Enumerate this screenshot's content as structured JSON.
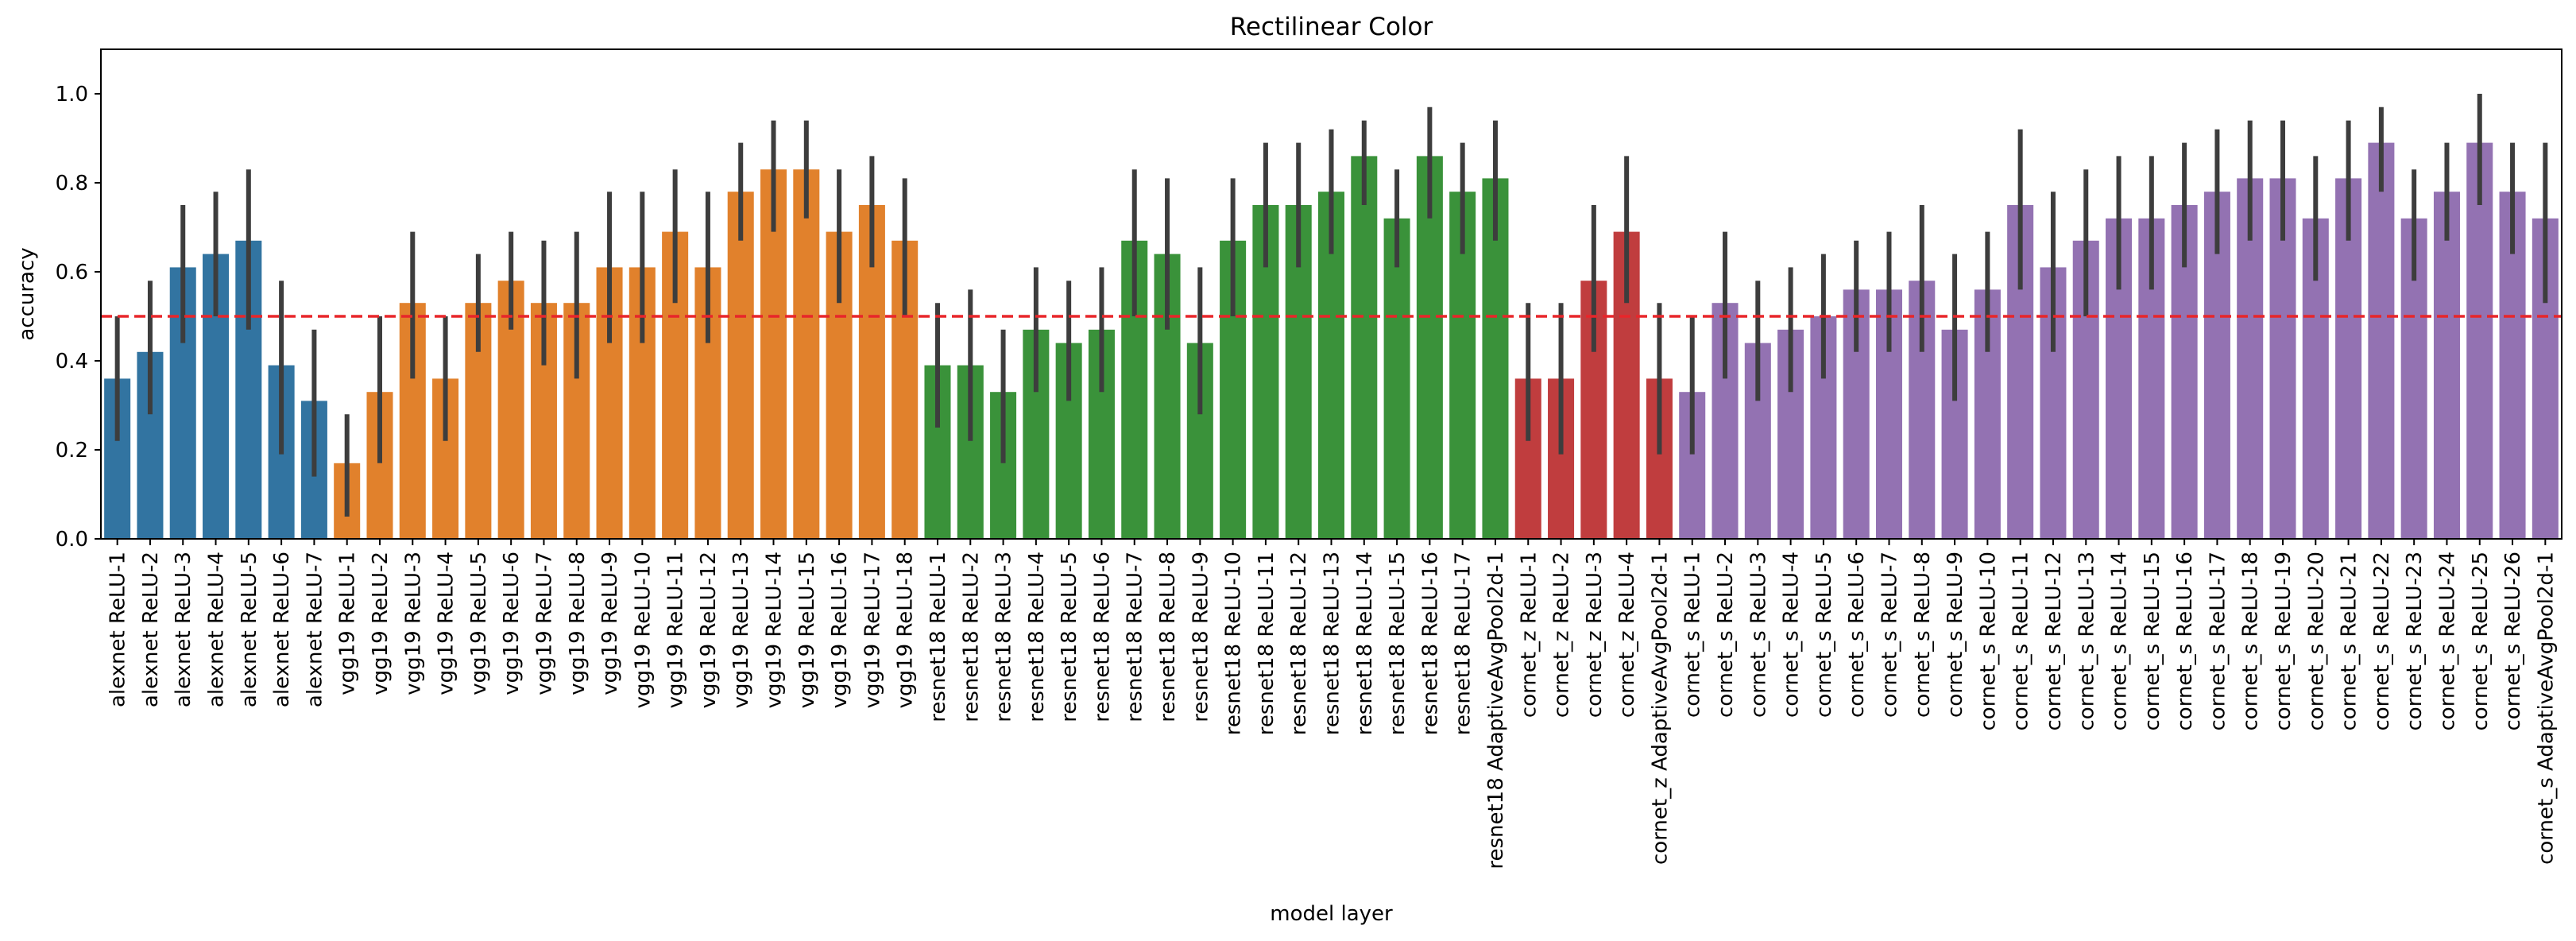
{
  "chart_data": {
    "type": "bar",
    "title": "Rectilinear Color",
    "xlabel": "model layer",
    "ylabel": "accuracy",
    "ylim": [
      0,
      1.1
    ],
    "yticks": [
      0.0,
      0.2,
      0.4,
      0.6,
      0.8,
      1.0
    ],
    "ytick_labels": [
      "0.0",
      "0.2",
      "0.4",
      "0.6",
      "0.8",
      "1.0"
    ],
    "reference_line": {
      "y": 0.5,
      "color": "#e8262a",
      "style": "dashed"
    },
    "error_bar_color": "#3d3d3d",
    "groups": [
      {
        "model": "alexnet",
        "color": "#3274a1"
      },
      {
        "model": "vgg19",
        "color": "#e1812c"
      },
      {
        "model": "resnet18",
        "color": "#3a923a"
      },
      {
        "model": "cornet_z",
        "color": "#c03d3e"
      },
      {
        "model": "cornet_s",
        "color": "#9372b2"
      }
    ],
    "categories": [
      "alexnet ReLU-1",
      "alexnet ReLU-2",
      "alexnet ReLU-3",
      "alexnet ReLU-4",
      "alexnet ReLU-5",
      "alexnet ReLU-6",
      "alexnet ReLU-7",
      "vgg19 ReLU-1",
      "vgg19 ReLU-2",
      "vgg19 ReLU-3",
      "vgg19 ReLU-4",
      "vgg19 ReLU-5",
      "vgg19 ReLU-6",
      "vgg19 ReLU-7",
      "vgg19 ReLU-8",
      "vgg19 ReLU-9",
      "vgg19 ReLU-10",
      "vgg19 ReLU-11",
      "vgg19 ReLU-12",
      "vgg19 ReLU-13",
      "vgg19 ReLU-14",
      "vgg19 ReLU-15",
      "vgg19 ReLU-16",
      "vgg19 ReLU-17",
      "vgg19 ReLU-18",
      "resnet18 ReLU-1",
      "resnet18 ReLU-2",
      "resnet18 ReLU-3",
      "resnet18 ReLU-4",
      "resnet18 ReLU-5",
      "resnet18 ReLU-6",
      "resnet18 ReLU-7",
      "resnet18 ReLU-8",
      "resnet18 ReLU-9",
      "resnet18 ReLU-10",
      "resnet18 ReLU-11",
      "resnet18 ReLU-12",
      "resnet18 ReLU-13",
      "resnet18 ReLU-14",
      "resnet18 ReLU-15",
      "resnet18 ReLU-16",
      "resnet18 ReLU-17",
      "resnet18 AdaptiveAvgPool2d-1",
      "cornet_z ReLU-1",
      "cornet_z ReLU-2",
      "cornet_z ReLU-3",
      "cornet_z ReLU-4",
      "cornet_z AdaptiveAvgPool2d-1",
      "cornet_s ReLU-1",
      "cornet_s ReLU-2",
      "cornet_s ReLU-3",
      "cornet_s ReLU-4",
      "cornet_s ReLU-5",
      "cornet_s ReLU-6",
      "cornet_s ReLU-7",
      "cornet_s ReLU-8",
      "cornet_s ReLU-9",
      "cornet_s ReLU-10",
      "cornet_s ReLU-11",
      "cornet_s ReLU-12",
      "cornet_s ReLU-13",
      "cornet_s ReLU-14",
      "cornet_s ReLU-15",
      "cornet_s ReLU-16",
      "cornet_s ReLU-17",
      "cornet_s ReLU-18",
      "cornet_s ReLU-19",
      "cornet_s ReLU-20",
      "cornet_s ReLU-21",
      "cornet_s ReLU-22",
      "cornet_s ReLU-23",
      "cornet_s ReLU-24",
      "cornet_s ReLU-25",
      "cornet_s ReLU-26",
      "cornet_s AdaptiveAvgPool2d-1"
    ],
    "values": [
      0.36,
      0.42,
      0.61,
      0.64,
      0.67,
      0.39,
      0.31,
      0.17,
      0.33,
      0.53,
      0.36,
      0.53,
      0.58,
      0.53,
      0.53,
      0.61,
      0.61,
      0.69,
      0.61,
      0.78,
      0.83,
      0.83,
      0.69,
      0.75,
      0.67,
      0.39,
      0.39,
      0.33,
      0.47,
      0.44,
      0.47,
      0.67,
      0.64,
      0.44,
      0.67,
      0.75,
      0.75,
      0.78,
      0.86,
      0.72,
      0.86,
      0.78,
      0.81,
      0.36,
      0.36,
      0.58,
      0.69,
      0.36,
      0.33,
      0.53,
      0.44,
      0.47,
      0.5,
      0.56,
      0.56,
      0.58,
      0.47,
      0.56,
      0.75,
      0.61,
      0.67,
      0.72,
      0.72,
      0.75,
      0.78,
      0.81,
      0.81,
      0.72,
      0.81,
      0.89,
      0.72,
      0.78,
      0.89,
      0.78,
      0.72
    ],
    "ci_low": [
      0.22,
      0.28,
      0.44,
      0.5,
      0.47,
      0.19,
      0.14,
      0.05,
      0.17,
      0.36,
      0.22,
      0.42,
      0.47,
      0.39,
      0.36,
      0.44,
      0.44,
      0.53,
      0.44,
      0.67,
      0.69,
      0.72,
      0.53,
      0.61,
      0.5,
      0.25,
      0.22,
      0.17,
      0.33,
      0.31,
      0.33,
      0.5,
      0.47,
      0.28,
      0.5,
      0.61,
      0.61,
      0.64,
      0.75,
      0.61,
      0.72,
      0.64,
      0.67,
      0.22,
      0.19,
      0.42,
      0.53,
      0.19,
      0.19,
      0.36,
      0.31,
      0.33,
      0.36,
      0.42,
      0.42,
      0.42,
      0.31,
      0.42,
      0.56,
      0.42,
      0.5,
      0.56,
      0.56,
      0.61,
      0.64,
      0.67,
      0.67,
      0.58,
      0.67,
      0.78,
      0.58,
      0.67,
      0.75,
      0.64,
      0.53
    ],
    "ci_high": [
      0.5,
      0.58,
      0.75,
      0.78,
      0.83,
      0.58,
      0.47,
      0.28,
      0.5,
      0.69,
      0.5,
      0.64,
      0.69,
      0.67,
      0.69,
      0.78,
      0.78,
      0.83,
      0.78,
      0.89,
      0.94,
      0.94,
      0.83,
      0.86,
      0.81,
      0.53,
      0.56,
      0.47,
      0.61,
      0.58,
      0.61,
      0.83,
      0.81,
      0.61,
      0.81,
      0.89,
      0.89,
      0.92,
      0.94,
      0.83,
      0.97,
      0.89,
      0.94,
      0.53,
      0.53,
      0.75,
      0.86,
      0.53,
      0.5,
      0.69,
      0.58,
      0.61,
      0.64,
      0.67,
      0.69,
      0.75,
      0.64,
      0.69,
      0.92,
      0.78,
      0.83,
      0.86,
      0.86,
      0.89,
      0.92,
      0.94,
      0.94,
      0.86,
      0.94,
      0.97,
      0.83,
      0.89,
      1.0,
      0.89,
      0.89
    ]
  }
}
